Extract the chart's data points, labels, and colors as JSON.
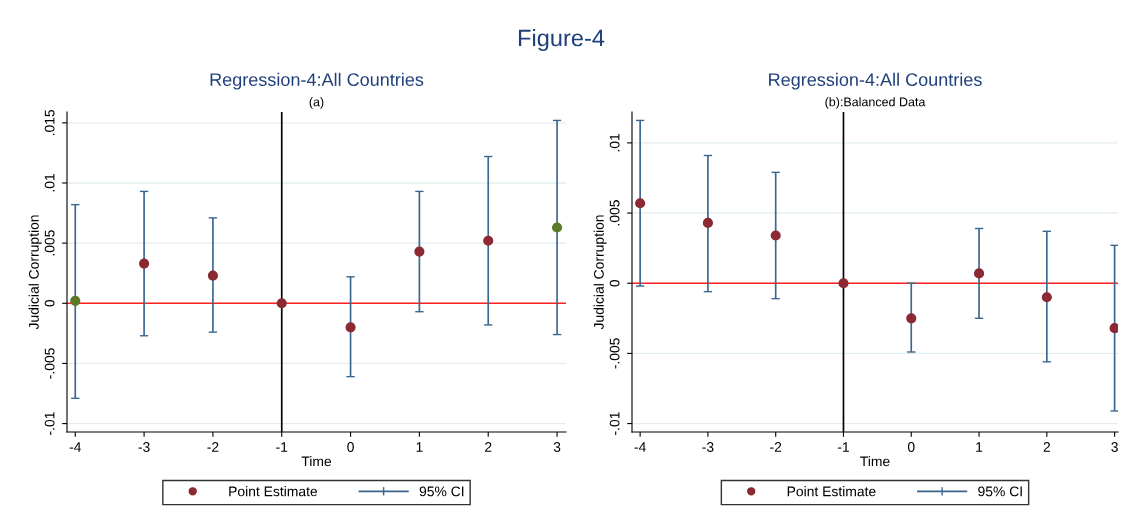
{
  "chart_data": [
    {
      "type": "scatter",
      "title": "Regression-4:All Countries",
      "subtitle": "(a)",
      "xlabel": "Time",
      "ylabel": "Judicial Corruption",
      "annotations": [
        "Figure-4"
      ],
      "x": [
        -4,
        -3,
        -2,
        -1,
        0,
        1,
        2,
        3
      ],
      "series": [
        {
          "name": "Point Estimate",
          "type": "scatter",
          "marker": "circle",
          "color": "#8b2a33",
          "colors": [
            "#5b7a27",
            "#8b2a33",
            "#8b2a33",
            "#8b2a33",
            "#8b2a33",
            "#8b2a33",
            "#8b2a33",
            "#5b7a27"
          ],
          "values": [
            0.0002,
            0.0033,
            0.0023,
            0,
            -0.002,
            0.0043,
            0.0052,
            0.0063
          ],
          "errors": [
            [
              -0.0079,
              0.0082
            ],
            [
              -0.0027,
              0.0093
            ],
            [
              -0.0024,
              0.0071
            ],
            null,
            [
              -0.0061,
              0.0022
            ],
            [
              -0.0007,
              0.0093
            ],
            [
              -0.0018,
              0.0122
            ],
            [
              -0.0026,
              0.0152
            ]
          ]
        },
        {
          "name": "95% CI",
          "type": "scatter",
          "marker": "none",
          "color": "#3a6690",
          "values": [
            null,
            null,
            null,
            null,
            null,
            null,
            null,
            null
          ]
        }
      ],
      "xlim": [
        -4.12,
        3.13
      ],
      "xticks": [
        -4,
        -3,
        -2,
        -1,
        0,
        1,
        2,
        3
      ],
      "ylim": [
        -0.0107,
        0.0159
      ],
      "yticks": [
        {
          "value": -0.01,
          "label": "-.01"
        },
        {
          "value": -0.005,
          "label": "-.005"
        },
        0,
        {
          "value": 0.005,
          "label": ".005"
        },
        {
          "value": 0.01,
          "label": ".01"
        },
        {
          "value": 0.015,
          "label": ".015"
        }
      ],
      "ref_lines": [
        {
          "axis": "y",
          "value": 0,
          "color": "#ff2020"
        },
        {
          "axis": "x",
          "value": -1,
          "color": "#000000"
        }
      ],
      "grid": "y",
      "legend": "bottom"
    },
    {
      "type": "scatter",
      "title": "Regression-4:All Countries",
      "subtitle": "(b):Balanced Data",
      "xlabel": "Time",
      "ylabel": "Judicial Corruption",
      "x": [
        -4,
        -3,
        -2,
        -1,
        0,
        1,
        2,
        3
      ],
      "series": [
        {
          "name": "Point Estimate",
          "type": "scatter",
          "marker": "circle",
          "color": "#8b2a33",
          "values": [
            0.0057,
            0.0043,
            0.0034,
            0,
            -0.0025,
            0.0007,
            -0.001,
            -0.0032
          ],
          "errors": [
            [
              -0.0002,
              0.0116
            ],
            [
              -0.0006,
              0.0091
            ],
            [
              -0.0011,
              0.0079
            ],
            null,
            [
              -0.0049,
              0.0
            ],
            [
              -0.0025,
              0.0039
            ],
            [
              -0.0056,
              0.0037
            ],
            [
              -0.0091,
              0.0027
            ]
          ]
        },
        {
          "name": "95% CI",
          "type": "scatter",
          "marker": "none",
          "color": "#3a6690",
          "values": [
            null,
            null,
            null,
            null,
            null,
            null,
            null,
            null
          ]
        }
      ],
      "xlim": [
        -4.12,
        3.05
      ],
      "xticks": [
        -4,
        -3,
        -2,
        -1,
        0,
        1,
        2,
        3
      ],
      "ylim": [
        -0.0106,
        0.0122
      ],
      "yticks": [
        {
          "value": -0.01,
          "label": "-.01"
        },
        {
          "value": -0.005,
          "label": "-.005"
        },
        0,
        {
          "value": 0.005,
          "label": ".005"
        },
        {
          "value": 0.01,
          "label": ".01"
        }
      ],
      "ref_lines": [
        {
          "axis": "y",
          "value": 0,
          "color": "#ff2020"
        },
        {
          "axis": "x",
          "value": -1,
          "color": "#000000"
        }
      ],
      "grid": "y",
      "legend": "bottom"
    }
  ]
}
